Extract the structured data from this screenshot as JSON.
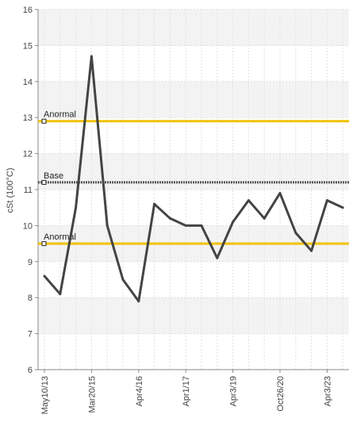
{
  "chart_data": {
    "type": "line",
    "ylabel": "cSt (100°C)",
    "ylim": [
      6,
      16
    ],
    "y_ticks": [
      "6",
      "7",
      "8",
      "9",
      "10",
      "11",
      "12",
      "13",
      "14",
      "15",
      "16"
    ],
    "x_tick_labels": [
      "May10/13",
      "Mar20/15",
      "Apr4/16",
      "Apr1/17",
      "Apr3/19",
      "Oct26/20",
      "Apr3/23"
    ],
    "x_tick_positions": [
      0,
      3,
      6,
      9,
      12,
      15,
      18
    ],
    "grid": true,
    "series": [
      {
        "values": [
          8.6,
          8.1,
          10.5,
          14.7,
          10.0,
          8.5,
          7.9,
          10.6,
          10.2,
          10.0,
          10.0,
          9.1,
          10.1,
          10.7,
          10.2,
          10.9,
          9.8,
          9.3,
          10.7,
          10.5
        ],
        "color": "#444444"
      }
    ],
    "reference_lines": [
      {
        "label": "Anormal",
        "value": 12.9,
        "color": "#f2c200",
        "style": "solid"
      },
      {
        "label": "Base",
        "value": 11.2,
        "color": "#555555",
        "style": "dotted"
      },
      {
        "label": "Anormal",
        "value": 9.5,
        "color": "#f2c200",
        "style": "solid"
      }
    ]
  }
}
